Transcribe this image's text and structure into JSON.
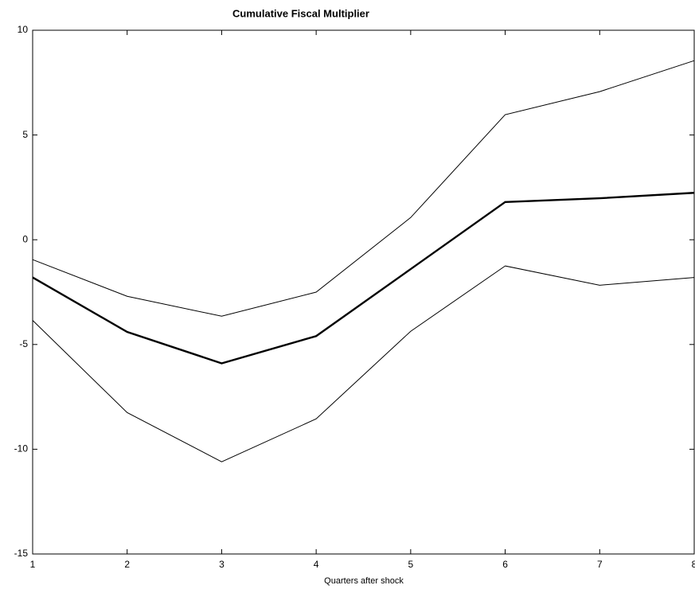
{
  "chart_data": {
    "type": "line",
    "title": "Cumulative Fiscal Multiplier",
    "x_label": "Quarters after shock",
    "x": [
      1,
      2,
      3,
      4,
      5,
      6,
      7,
      8
    ],
    "series": [
      {
        "color": "#000000",
        "line_width": 1,
        "values": [
          -0.95,
          -2.7,
          -3.65,
          -2.5,
          1.06,
          5.97,
          7.07,
          8.55
        ]
      },
      {
        "color": "#000000",
        "line_width": 2.4,
        "values": [
          -1.8,
          -4.4,
          -5.9,
          -4.6,
          -1.4,
          1.8,
          1.98,
          2.24
        ]
      },
      {
        "color": "#000000",
        "line_width": 1,
        "values": [
          -3.85,
          -8.25,
          -10.6,
          -8.55,
          -4.37,
          -1.25,
          -2.17,
          -1.8
        ]
      }
    ],
    "xlim": [
      1,
      8
    ],
    "xticks": [
      1,
      2,
      3,
      4,
      5,
      6,
      7,
      8
    ],
    "ylim": [
      -15,
      10
    ],
    "yticks": [
      -15,
      -10,
      -5,
      0,
      5,
      10
    ]
  }
}
